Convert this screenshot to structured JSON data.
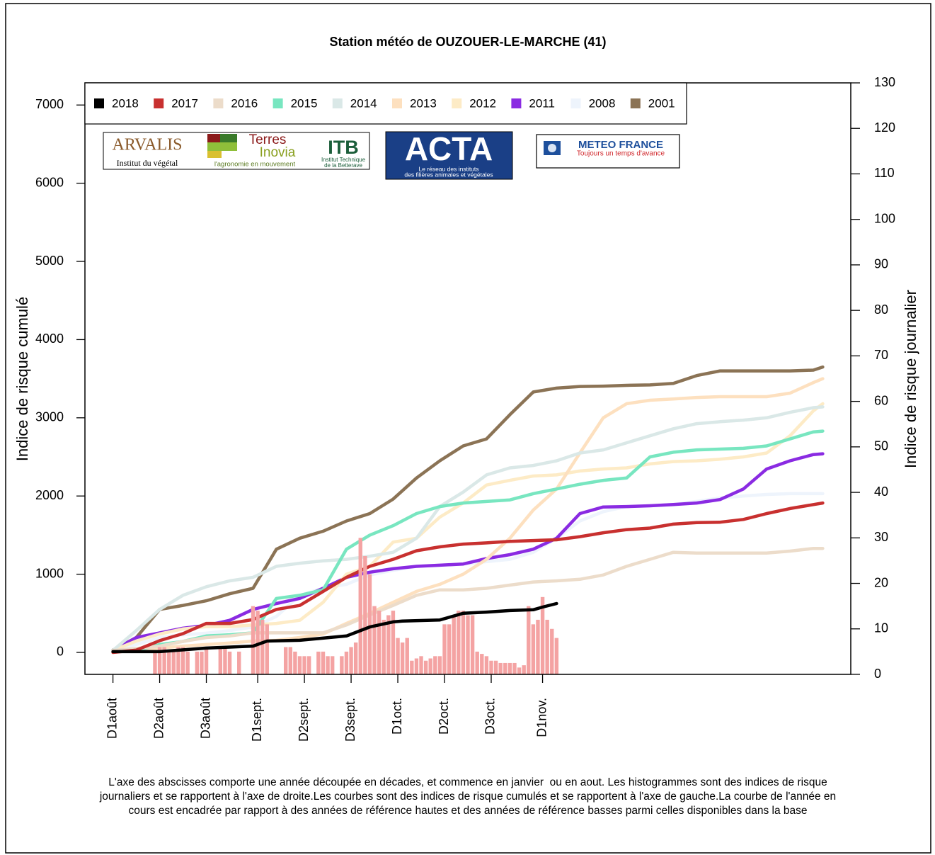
{
  "chart_data": {
    "type": "line",
    "title": "Station météo de OUZOUER-LE-MARCHE (41)",
    "ylabel": "Indice de risque cumulé",
    "y2label": "Indice de risque journalier",
    "xlim": [
      -6,
      158
    ],
    "ylim": [
      -281,
      7283
    ],
    "y2lim": [
      0,
      130
    ],
    "xticks": [
      {
        "value": 0,
        "label": "D1août"
      },
      {
        "value": 10,
        "label": "D2août"
      },
      {
        "value": 20,
        "label": "D3août"
      },
      {
        "value": 31,
        "label": "D1sept."
      },
      {
        "value": 41,
        "label": "D2sept."
      },
      {
        "value": 51,
        "label": "D3sept."
      },
      {
        "value": 61,
        "label": "D1oct."
      },
      {
        "value": 71,
        "label": "D2oct."
      },
      {
        "value": 81,
        "label": "D3oct."
      },
      {
        "value": 92,
        "label": "D1nov."
      }
    ],
    "yticks": [
      0,
      1000,
      2000,
      3000,
      4000,
      5000,
      6000,
      7000
    ],
    "y2ticks": [
      0,
      10,
      20,
      30,
      40,
      50,
      60,
      70,
      80,
      90,
      100,
      110,
      120,
      130
    ],
    "legend": "top-left",
    "x": [
      0,
      5,
      10,
      15,
      20,
      25,
      30,
      35,
      40,
      45,
      50,
      55,
      60,
      65,
      70,
      75,
      80,
      85,
      90,
      95,
      100,
      105,
      110,
      115,
      120,
      125,
      130,
      135,
      140,
      145,
      150,
      152
    ],
    "series": [
      {
        "name": "2018",
        "color": "#000000",
        "x": [
          0,
          10,
          20,
          30,
          33,
          40,
          50,
          55,
          60,
          62,
          70,
          75,
          80,
          85,
          90,
          92,
          95
        ],
        "values": [
          10,
          10,
          55,
          80,
          145,
          155,
          210,
          325,
          390,
          400,
          415,
          500,
          515,
          535,
          545,
          580,
          625
        ]
      },
      {
        "name": "2017",
        "color": "#c8302f",
        "values": [
          0,
          30,
          150,
          240,
          370,
          370,
          420,
          550,
          600,
          780,
          960,
          1100,
          1190,
          1300,
          1350,
          1385,
          1400,
          1420,
          1430,
          1440,
          1480,
          1530,
          1570,
          1590,
          1640,
          1660,
          1665,
          1700,
          1775,
          1840,
          1890,
          1910
        ]
      },
      {
        "name": "2016",
        "color": "#ecdcca",
        "values": [
          25,
          50,
          80,
          140,
          190,
          210,
          250,
          250,
          250,
          250,
          350,
          480,
          600,
          730,
          800,
          800,
          820,
          860,
          900,
          915,
          935,
          990,
          1100,
          1190,
          1280,
          1270,
          1270,
          1270,
          1270,
          1295,
          1330,
          1330
        ]
      },
      {
        "name": "2015",
        "color": "#78e6c0",
        "values": [
          25,
          25,
          100,
          140,
          210,
          225,
          250,
          690,
          730,
          800,
          1320,
          1500,
          1620,
          1775,
          1865,
          1910,
          1930,
          1950,
          2030,
          2090,
          2150,
          2200,
          2230,
          2500,
          2560,
          2590,
          2600,
          2610,
          2640,
          2730,
          2820,
          2830
        ]
      },
      {
        "name": "2014",
        "color": "#dae8e7",
        "values": [
          25,
          280,
          550,
          730,
          840,
          915,
          960,
          1100,
          1140,
          1170,
          1190,
          1230,
          1280,
          1460,
          1865,
          2050,
          2270,
          2360,
          2390,
          2450,
          2550,
          2590,
          2680,
          2770,
          2860,
          2925,
          2950,
          2970,
          3000,
          3070,
          3130,
          3140
        ]
      },
      {
        "name": "2013",
        "color": "#fde0bf",
        "values": [
          25,
          40,
          55,
          80,
          100,
          120,
          145,
          155,
          190,
          235,
          370,
          500,
          640,
          780,
          870,
          1000,
          1190,
          1460,
          1820,
          2090,
          2550,
          3000,
          3180,
          3225,
          3240,
          3260,
          3270,
          3270,
          3270,
          3315,
          3450,
          3500
        ]
      },
      {
        "name": "2012",
        "color": "#fdebc6",
        "values": [
          25,
          145,
          235,
          300,
          330,
          330,
          350,
          370,
          410,
          640,
          1000,
          1100,
          1410,
          1460,
          1730,
          1910,
          2140,
          2200,
          2255,
          2270,
          2320,
          2345,
          2360,
          2410,
          2440,
          2450,
          2470,
          2500,
          2550,
          2770,
          3090,
          3180
        ]
      },
      {
        "name": "2011",
        "color": "#8a2be2",
        "values": [
          25,
          190,
          250,
          310,
          345,
          410,
          550,
          625,
          690,
          820,
          960,
          1025,
          1070,
          1100,
          1115,
          1130,
          1200,
          1250,
          1320,
          1460,
          1775,
          1860,
          1865,
          1875,
          1890,
          1910,
          1955,
          2090,
          2345,
          2450,
          2530,
          2540
        ]
      },
      {
        "name": "2008",
        "color": "#eef4fc",
        "values": [
          25,
          100,
          190,
          225,
          245,
          280,
          325,
          460,
          730,
          820,
          870,
          990,
          1050,
          1100,
          1115,
          1130,
          1160,
          1190,
          1280,
          1460,
          1680,
          1800,
          1865,
          1875,
          1890,
          1930,
          1975,
          2000,
          2020,
          2030,
          2030,
          2030
        ]
      },
      {
        "name": "2001",
        "color": "#8b7355",
        "values": [
          30,
          190,
          550,
          600,
          660,
          750,
          820,
          1320,
          1460,
          1550,
          1680,
          1775,
          1960,
          2230,
          2450,
          2640,
          2730,
          3040,
          3330,
          3380,
          3400,
          3405,
          3415,
          3420,
          3440,
          3540,
          3600,
          3600,
          3600,
          3600,
          3610,
          3650
        ]
      }
    ],
    "bars": {
      "type": "bar",
      "axis": "y2",
      "color": "#f4a3a3",
      "x": [
        9,
        10,
        11,
        12,
        13,
        14,
        15,
        16,
        17,
        18,
        19,
        20,
        21,
        22,
        23,
        24,
        25,
        26,
        27,
        28,
        29,
        30,
        31,
        32,
        33,
        34,
        35,
        36,
        37,
        38,
        39,
        40,
        41,
        42,
        43,
        44,
        45,
        46,
        47,
        48,
        49,
        50,
        51,
        52,
        53,
        54,
        55,
        56,
        57,
        58,
        59,
        60,
        61,
        62,
        63,
        64,
        65,
        66,
        67,
        68,
        69,
        70,
        71,
        72,
        73,
        74,
        75,
        76,
        77,
        78,
        79,
        80,
        81,
        82,
        83,
        84,
        85,
        86,
        87,
        88,
        89,
        90,
        91,
        92,
        93,
        94,
        95
      ],
      "values": [
        5,
        6,
        6,
        5,
        5,
        6,
        6,
        5,
        0,
        5,
        5,
        6,
        0,
        0,
        6,
        6,
        5,
        0,
        5,
        0,
        0,
        15,
        14,
        12,
        11,
        0,
        0,
        0,
        6,
        6,
        5,
        4,
        4,
        4,
        0,
        5,
        5,
        4,
        4,
        0,
        4,
        5,
        6,
        7,
        30,
        26,
        22,
        15,
        14,
        12,
        13,
        14,
        8,
        7,
        8,
        3,
        3.5,
        4,
        3,
        3.5,
        4,
        4,
        11,
        11,
        13,
        14,
        14,
        13,
        13,
        5,
        4.5,
        4,
        3,
        3,
        2.5,
        2.5,
        2.5,
        2.5,
        1.5,
        2,
        15,
        11,
        12,
        17,
        12,
        10,
        8
      ]
    },
    "caption": [
      "L'axe des abscisses comporte une année découpée en décades, et commence en janvier  ou en aout. Les histogrammes sont des indices de risque",
      "journaliers et se rapportent à l'axe de droite.Les courbes sont des indices de risque cumulés et se rapportent à l'axe de gauche.La courbe de l'année en",
      "cours est encadrée par rapport à des années de référence hautes et des années de référence basses parmi celles disponibles dans la base"
    ]
  },
  "logos": {
    "arvalis": {
      "name": "ARVALIS",
      "tagline": "Institut du végétal"
    },
    "terres_inovia": {
      "name1": "Terres",
      "name2": "Inovia",
      "tagline": "l'agronomie en mouvement"
    },
    "itb": {
      "name": "ITB",
      "tagline1": "Institut Technique",
      "tagline2": "de la Betterave"
    },
    "acta": {
      "name": "ACTA",
      "tagline1": "Le réseau des instituts",
      "tagline2": "des filières animales et végétales"
    },
    "meteo_france": {
      "name": "METEO FRANCE",
      "tagline": "Toujours un temps d'avance"
    }
  }
}
